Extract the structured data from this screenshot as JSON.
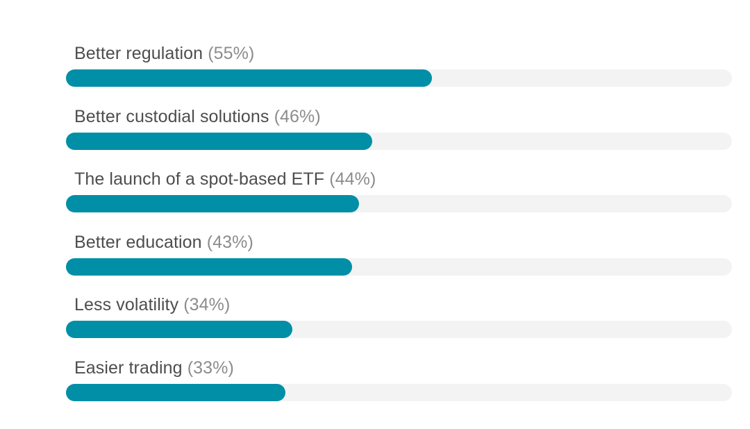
{
  "chart_data": {
    "type": "bar",
    "orientation": "horizontal",
    "categories": [
      "Better regulation",
      "Better custodial solutions",
      "The launch of a spot-based ETF",
      "Better education",
      "Less volatility",
      "Easier trading"
    ],
    "values": [
      55,
      46,
      44,
      43,
      34,
      33
    ],
    "value_labels": [
      "(55%)",
      "(46%)",
      "(44%)",
      "(43%)",
      "(34%)",
      "(33%)"
    ],
    "xlim": [
      0,
      100
    ],
    "grid": false,
    "colors": {
      "bar": "#008fa6",
      "track": "#f3f3f3",
      "label": "#4d4d4d",
      "value_label": "#8c8c8c"
    }
  }
}
